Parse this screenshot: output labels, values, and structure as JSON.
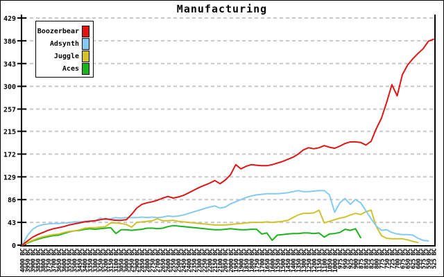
{
  "window": {
    "title": "Manufacturing"
  },
  "colors": {
    "background": "#ffffff",
    "border": "#000000",
    "axis": "#000000",
    "grid": "#c8c8c8",
    "boozerbear_red": "#dd1515",
    "adsynth_blue": "#85caf0",
    "juggle_yellow": "#d1c22b",
    "aces_green": "#1cb41c"
  },
  "chart_data": {
    "type": "line",
    "title": "Manufacturing",
    "xlabel": "",
    "ylabel": "",
    "ylim": [
      0,
      429
    ],
    "y_ticks": [
      0,
      43,
      86,
      129,
      172,
      215,
      257,
      300,
      343,
      386,
      429
    ],
    "grid": "horizontal dashed",
    "legend_position": "top-left",
    "x_labels": [
      "4000 BC",
      "3950 BC",
      "3900 BC",
      "3850 BC",
      "3800 BC",
      "3750 BC",
      "3700 BC",
      "3650 BC",
      "3600 BC",
      "3550 BC",
      "3500 BC",
      "3450 BC",
      "3400 BC",
      "3350 BC",
      "3300 BC",
      "3250 BC",
      "3200 BC",
      "3150 BC",
      "3100 BC",
      "3050 BC",
      "3000 BC",
      "2950 BC",
      "2900 BC",
      "2850 BC",
      "2800 BC",
      "2750 BC",
      "2700 BC",
      "2650 BC",
      "2600 BC",
      "2550 BC",
      "2500 BC",
      "2450 BC",
      "2400 BC",
      "2350 BC",
      "2300 BC",
      "2250 BC",
      "2200 BC",
      "2150 BC",
      "2100 BC",
      "2050 BC",
      "2000 BC",
      "1950 BC",
      "1900 BC",
      "1850 BC",
      "1800 BC",
      "1750 BC",
      "1700 BC",
      "1650 BC",
      "1600 BC",
      "1550 BC",
      "1500 BC",
      "1450 BC",
      "1400 BC",
      "1350 BC",
      "1300 BC",
      "1250 BC",
      "1200 BC",
      "1150 BC",
      "1100 BC",
      "1050 BC",
      "1000 BC",
      "975 BC",
      "950 BC",
      "925 BC",
      "900 BC",
      "875 BC",
      "850 BC",
      "825 BC",
      "800 BC",
      "775 BC",
      "750 BC",
      "725 BC",
      "700 BC",
      "675 BC",
      "650 BC",
      "625 BC",
      "600 BC",
      "575 BC",
      "550 BC",
      "525 BC"
    ],
    "series": [
      {
        "name": "Boozerbear",
        "color": "#dd1515",
        "values": [
          0,
          8,
          15,
          20,
          24,
          28,
          31,
          33,
          35,
          38,
          40,
          42,
          44,
          45,
          46,
          48,
          50,
          48,
          47,
          47,
          48,
          58,
          70,
          77,
          80,
          82,
          85,
          89,
          92,
          89,
          91,
          94,
          99,
          104,
          109,
          113,
          117,
          122,
          116,
          123,
          133,
          152,
          144,
          149,
          152,
          151,
          150,
          150,
          152,
          155,
          158,
          162,
          166,
          172,
          180,
          184,
          182,
          184,
          188,
          185,
          183,
          187,
          192,
          195,
          195,
          194,
          189,
          196,
          220,
          240,
          270,
          303,
          282,
          322,
          340,
          352,
          362,
          371,
          385,
          389
        ]
      },
      {
        "name": "Adsynth",
        "color": "#85caf0",
        "values": [
          0,
          18,
          30,
          36,
          39,
          40,
          41,
          41,
          42,
          42,
          44,
          44,
          45,
          46,
          46,
          51,
          48,
          50,
          52,
          51,
          52,
          52,
          52,
          53,
          52,
          53,
          52,
          53,
          55,
          54,
          55,
          57,
          60,
          63,
          66,
          69,
          72,
          74,
          70,
          72,
          78,
          82,
          86,
          90,
          93,
          95,
          96,
          97,
          97,
          97,
          98,
          99,
          101,
          103,
          101,
          101,
          102,
          103,
          103,
          95,
          62,
          80,
          88,
          77,
          86,
          80,
          65,
          50,
          36,
          28,
          29,
          24,
          21,
          20,
          20,
          19,
          13,
          9,
          8,
          null
        ]
      },
      {
        "name": "Juggle",
        "color": "#d1c22b",
        "values": [
          0,
          5,
          9,
          13,
          16,
          18,
          20,
          21,
          24,
          26,
          27,
          29,
          32,
          33,
          33,
          34,
          35,
          42,
          42,
          41,
          39,
          34,
          43,
          44,
          45,
          46,
          50,
          46,
          46,
          47,
          45,
          44,
          43,
          42,
          41,
          40,
          39,
          38,
          38,
          38,
          39,
          40,
          41,
          42,
          43,
          43,
          43,
          44,
          43,
          44,
          45,
          47,
          52,
          57,
          60,
          60,
          61,
          66,
          42,
          45,
          48,
          51,
          53,
          57,
          60,
          58,
          63,
          66,
          35,
          18,
          13,
          12,
          12,
          12,
          10,
          7,
          5,
          null,
          null,
          null
        ]
      },
      {
        "name": "Aces",
        "color": "#1cb41c",
        "values": [
          0,
          4,
          8,
          11,
          14,
          16,
          18,
          19,
          22,
          25,
          27,
          28,
          30,
          31,
          30,
          31,
          32,
          33,
          22,
          29,
          29,
          28,
          29,
          30,
          32,
          32,
          31,
          32,
          35,
          37,
          36,
          35,
          34,
          33,
          32,
          31,
          30,
          29,
          29,
          30,
          31,
          30,
          29,
          29,
          30,
          30,
          21,
          23,
          9,
          19,
          20,
          21,
          22,
          22,
          23,
          23,
          22,
          23,
          15,
          21,
          22,
          24,
          30,
          28,
          31,
          14,
          null,
          null,
          null,
          null,
          null,
          null,
          null,
          null,
          null,
          null,
          null,
          null,
          null,
          null
        ]
      }
    ]
  }
}
